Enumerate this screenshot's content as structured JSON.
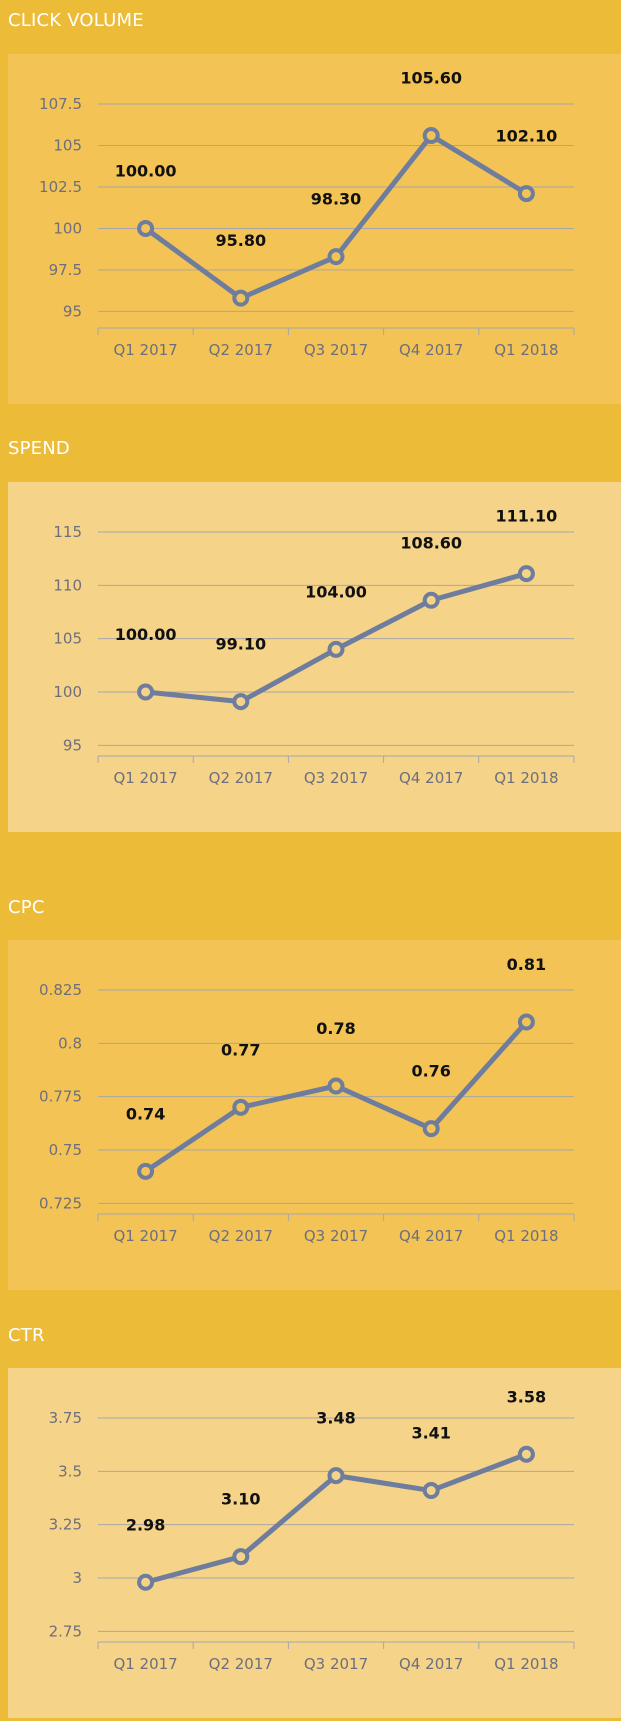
{
  "colors": {
    "background": "#ecbc38",
    "line": "#6e7d9e",
    "grid": "#a7a7a9"
  },
  "chart_data": [
    {
      "type": "line",
      "title": "CLICK VOLUME",
      "panel_bg": "#f3c356",
      "categories": [
        "Q1 2017",
        "Q2 2017",
        "Q3 2017",
        "Q4 2017",
        "Q1 2018"
      ],
      "values": [
        100.0,
        95.8,
        98.3,
        105.6,
        102.1
      ],
      "data_labels": [
        "100.00",
        "95.80",
        "98.30",
        "105.60",
        "102.10"
      ],
      "ylim": [
        94,
        107.5
      ],
      "yticks": [
        95,
        97.5,
        100,
        102.5,
        105,
        107.5
      ],
      "ytick_labels": [
        "95",
        "97.5",
        "100",
        "102.5",
        "105",
        "107.5"
      ]
    },
    {
      "type": "line",
      "title": "SPEND",
      "panel_bg": "#f5d388",
      "categories": [
        "Q1 2017",
        "Q2 2017",
        "Q3 2017",
        "Q4 2017",
        "Q1 2018"
      ],
      "values": [
        100.0,
        99.1,
        104.0,
        108.6,
        111.1
      ],
      "data_labels": [
        "100.00",
        "99.10",
        "104.00",
        "108.60",
        "111.10"
      ],
      "ylim": [
        94,
        115
      ],
      "yticks": [
        95,
        100,
        105,
        110,
        115
      ],
      "ytick_labels": [
        "95",
        "100",
        "105",
        "110",
        "115"
      ]
    },
    {
      "type": "line",
      "title": "CPC",
      "panel_bg": "#f3c356",
      "categories": [
        "Q1 2017",
        "Q2 2017",
        "Q3 2017",
        "Q4 2017",
        "Q1 2018"
      ],
      "values": [
        0.74,
        0.77,
        0.78,
        0.76,
        0.81
      ],
      "data_labels": [
        "0.74",
        "0.77",
        "0.78",
        "0.76",
        "0.81"
      ],
      "ylim": [
        0.72,
        0.825
      ],
      "yticks": [
        0.725,
        0.75,
        0.775,
        0.8,
        0.825
      ],
      "ytick_labels": [
        "0.725",
        "0.75",
        "0.775",
        "0.8",
        "0.825"
      ]
    },
    {
      "type": "line",
      "title": "CTR",
      "panel_bg": "#f5d388",
      "categories": [
        "Q1 2017",
        "Q2 2017",
        "Q3 2017",
        "Q4 2017",
        "Q1 2018"
      ],
      "values": [
        2.98,
        3.1,
        3.48,
        3.41,
        3.58
      ],
      "data_labels": [
        "2.98",
        "3.10",
        "3.48",
        "3.41",
        "3.58"
      ],
      "ylim": [
        2.7,
        3.75
      ],
      "yticks": [
        2.75,
        3,
        3.25,
        3.5,
        3.75
      ],
      "ytick_labels": [
        "2.75",
        "3",
        "3.25",
        "3.5",
        "3.75"
      ]
    }
  ]
}
